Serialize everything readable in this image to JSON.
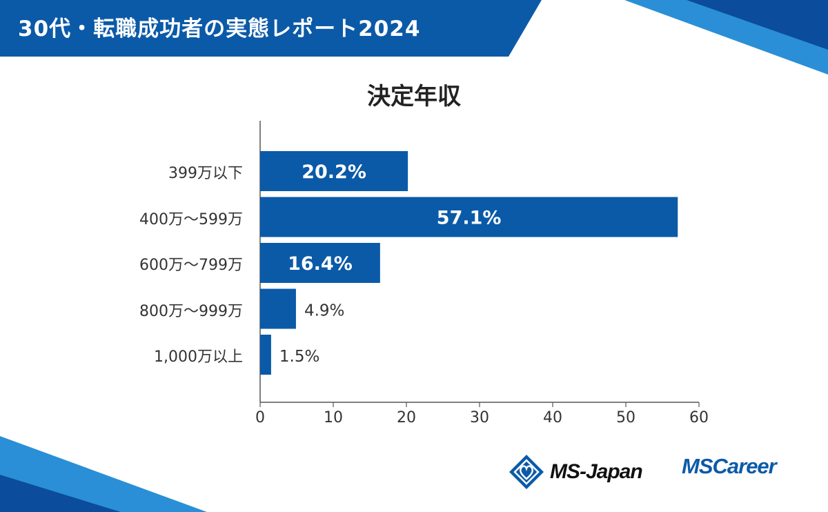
{
  "header": {
    "title": "30代・転職成功者の実態レポート2024"
  },
  "colors": {
    "bar": "#0b5aa8",
    "banner": "#0b5aa8",
    "logo": "#0b5aa8",
    "axis": "#555555"
  },
  "chart_data": {
    "type": "bar",
    "orientation": "horizontal",
    "title": "決定年収",
    "categories": [
      "399万以下",
      "400万～599万",
      "600万～799万",
      "800万～999万",
      "1,000万以上"
    ],
    "values": [
      20.2,
      57.1,
      16.4,
      4.9,
      1.5
    ],
    "value_labels": [
      "20.2%",
      "57.1%",
      "16.4%",
      "4.9%",
      "1.5%"
    ],
    "xlim": [
      0,
      60
    ],
    "xticks": [
      "0",
      "10",
      "20",
      "30",
      "40",
      "50",
      "60"
    ],
    "xlabel": "",
    "ylabel": "",
    "grid": false,
    "legend": "none"
  },
  "logos": {
    "ms_japan": "MS-Japan",
    "ms_career_ms": "MS",
    "ms_career_career": "Career"
  }
}
